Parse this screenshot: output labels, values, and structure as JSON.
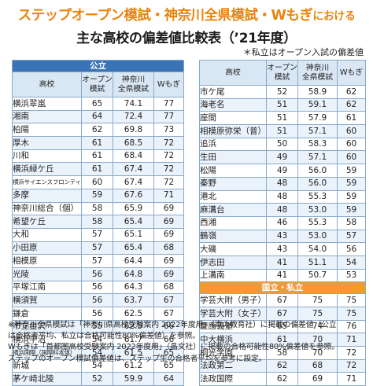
{
  "title_line1_main": "ステップオープン模試・神奈川全県模試・Wもぎ",
  "title_line1_tail": "における",
  "title_line2": "主な高校の偏差値比較表（’21年度）",
  "note_top": "＊私立はオープン入試の偏差値",
  "columns": {
    "school": "高校",
    "open": "オープン模試",
    "kanagawa": "神奈川全県模試",
    "wmogi": "Wもぎ"
  },
  "sections": {
    "public": "公立",
    "national_private": "国立・私立"
  },
  "left_rows": [
    {
      "name": "横浜翠嵐",
      "open": "65",
      "kanagawa": "74.1",
      "wmogi": "77"
    },
    {
      "name": "湘南",
      "open": "64",
      "kanagawa": "72.4",
      "wmogi": "77"
    },
    {
      "name": "柏陽",
      "open": "62",
      "kanagawa": "69.8",
      "wmogi": "73"
    },
    {
      "name": "厚木",
      "open": "61",
      "kanagawa": "68.5",
      "wmogi": "72"
    },
    {
      "name": "川和",
      "open": "61",
      "kanagawa": "68.4",
      "wmogi": "72"
    },
    {
      "name": "横浜緑ケ丘",
      "open": "61",
      "kanagawa": "67.4",
      "wmogi": "72"
    },
    {
      "name": "横浜サイエンスフロンティア",
      "open": "60",
      "kanagawa": "67.4",
      "wmogi": "72"
    },
    {
      "name": "多摩",
      "open": "59",
      "kanagawa": "67.6",
      "wmogi": "71"
    },
    {
      "name": "神奈川総合（個）",
      "open": "58",
      "kanagawa": "65.9",
      "wmogi": "69"
    },
    {
      "name": "希望ケ丘",
      "open": "58",
      "kanagawa": "65.4",
      "wmogi": "69"
    },
    {
      "name": "大和",
      "open": "57",
      "kanagawa": "65.1",
      "wmogi": "69"
    },
    {
      "name": "小田原",
      "open": "57",
      "kanagawa": "65.4",
      "wmogi": "68"
    },
    {
      "name": "相模原",
      "open": "57",
      "kanagawa": "64.4",
      "wmogi": "69"
    },
    {
      "name": "光陵",
      "open": "56",
      "kanagawa": "64.8",
      "wmogi": "69"
    },
    {
      "name": "平塚江南",
      "open": "56",
      "kanagawa": "64.3",
      "wmogi": "68"
    },
    {
      "name": "横須賀",
      "open": "56",
      "kanagawa": "63.7",
      "wmogi": "67"
    },
    {
      "name": "鎌倉",
      "open": "56",
      "kanagawa": "62.5",
      "wmogi": "67"
    },
    {
      "name": "市立金沢",
      "open": "55",
      "kanagawa": "62.5",
      "wmogi": "66"
    },
    {
      "name": "横浜平沼",
      "open": "54",
      "kanagawa": "61.7",
      "wmogi": "66"
    },
    {
      "name": "横浜国際（国際科本体）",
      "open": "54",
      "kanagawa": "61.5",
      "wmogi": "65"
    },
    {
      "name": "新城",
      "open": "54",
      "kanagawa": "61.2",
      "wmogi": "65"
    },
    {
      "name": "茅ケ崎北陵",
      "open": "52",
      "kanagawa": "59.9",
      "wmogi": "64"
    }
  ],
  "right_public_rows": [
    {
      "name": "市ケ尾",
      "open": "52",
      "kanagawa": "58.9",
      "wmogi": "62"
    },
    {
      "name": "海老名",
      "open": "51",
      "kanagawa": "59.1",
      "wmogi": "62"
    },
    {
      "name": "座間",
      "open": "51",
      "kanagawa": "57.9",
      "wmogi": "61"
    },
    {
      "name": "相模原弥栄（普）",
      "open": "51",
      "kanagawa": "57.1",
      "wmogi": "60"
    },
    {
      "name": "追浜",
      "open": "50",
      "kanagawa": "58.3",
      "wmogi": "60"
    },
    {
      "name": "生田",
      "open": "49",
      "kanagawa": "57.1",
      "wmogi": "60"
    },
    {
      "name": "松陽",
      "open": "49",
      "kanagawa": "56.0",
      "wmogi": "59"
    },
    {
      "name": "秦野",
      "open": "48",
      "kanagawa": "56.0",
      "wmogi": "59"
    },
    {
      "name": "港北",
      "open": "48",
      "kanagawa": "55.3",
      "wmogi": "59"
    },
    {
      "name": "麻溝台",
      "open": "48",
      "kanagawa": "53.0",
      "wmogi": "59"
    },
    {
      "name": "西湘",
      "open": "46",
      "kanagawa": "55.3",
      "wmogi": "58"
    },
    {
      "name": "鶴嶺",
      "open": "43",
      "kanagawa": "53.0",
      "wmogi": "57"
    },
    {
      "name": "大磯",
      "open": "43",
      "kanagawa": "54.0",
      "wmogi": "56"
    },
    {
      "name": "伊志田",
      "open": "41",
      "kanagawa": "51.1",
      "wmogi": "54"
    },
    {
      "name": "上溝南",
      "open": "41",
      "kanagawa": "50.7",
      "wmogi": "53"
    }
  ],
  "right_national_rows": [
    {
      "name": "学芸大附（男子）",
      "open": "67",
      "kanagawa": "75",
      "wmogi": "75"
    },
    {
      "name": "学芸大附（女子）",
      "open": "67",
      "kanagawa": "75",
      "wmogi": "75"
    },
    {
      "name": "慶應義塾",
      "open": "65",
      "kanagawa": "74",
      "wmogi": "76"
    },
    {
      "name": "中大横浜",
      "open": "61",
      "kanagawa": "70",
      "wmogi": "71"
    },
    {
      "name": "桐光学園",
      "open": "58",
      "kanagawa": "70",
      "wmogi": "72"
    },
    {
      "name": "法政第二",
      "open": "62",
      "kanagawa": "68",
      "wmogi": "72"
    },
    {
      "name": "法政国際",
      "open": "62",
      "kanagawa": "69",
      "wmogi": "71"
    }
  ],
  "footnotes": [
    "※神奈川全県模試は「神奈川県高校受験案内 2022年度用」（声の教育社）に掲載の偏差値（公立",
    "は合格者平均、私立は合格可能性80%偏差値）を参照。",
    "Wもぎは「首都圏高校受験案内 2022年度用」（晶文社）に掲載の合格可能性80%偏差値を参照。",
    "ステップのオープン模試偏差値は、ステップ生の合格者平均を参考に設定。"
  ]
}
